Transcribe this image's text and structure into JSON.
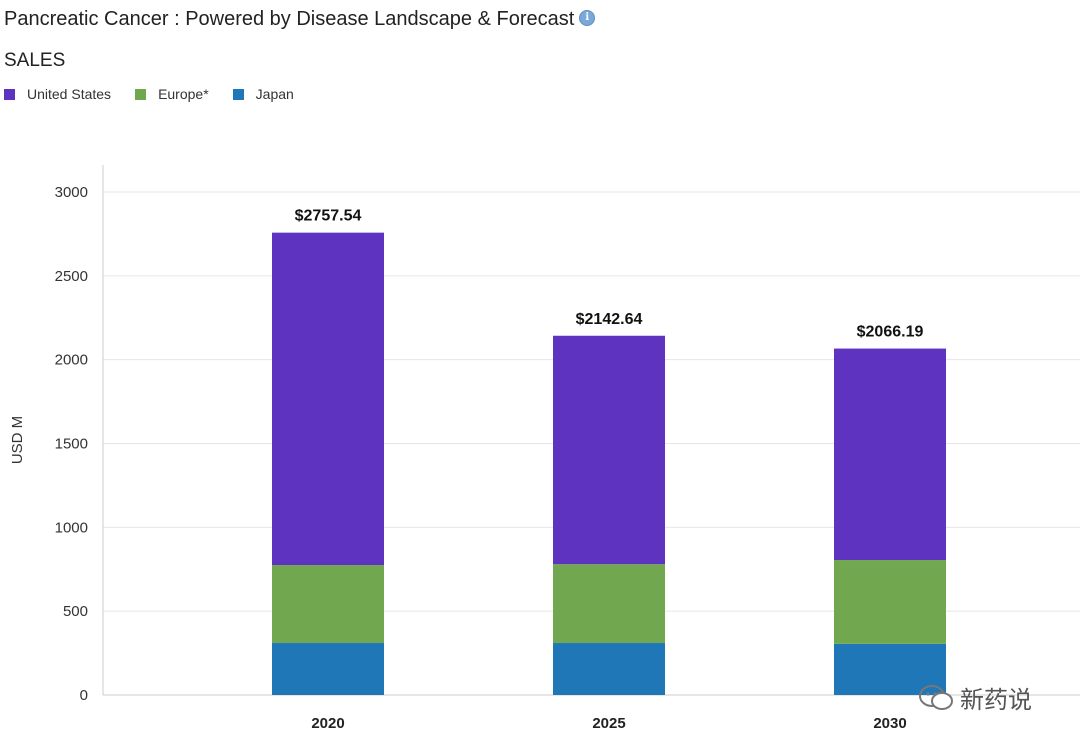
{
  "page_title": "Pancreatic Cancer : Powered by Disease Landscape & Forecast",
  "info_icon": "info-icon",
  "section_label": "SALES",
  "watermark_text": "新药说",
  "chart_data": {
    "type": "bar",
    "stacked": true,
    "title": "Pancreatic Cancer : Powered by Disease Landscape & Forecast",
    "subtitle": "SALES",
    "xlabel": "",
    "ylabel": "USD M",
    "ylim": [
      0,
      3000
    ],
    "yticks": [
      0,
      500,
      1000,
      1500,
      2000,
      2500,
      3000
    ],
    "grid": true,
    "legend_position": "top-left",
    "categories": [
      "2020",
      "2025",
      "2030"
    ],
    "series": [
      {
        "name": "Japan",
        "color": "#1f77b8",
        "values": [
          310,
          310,
          305
        ]
      },
      {
        "name": "Europe*",
        "color": "#71a84f",
        "values": [
          465,
          470,
          500
        ]
      },
      {
        "name": "United States",
        "color": "#5e33bf",
        "values": [
          1982.54,
          1362.64,
          1261.19
        ]
      }
    ],
    "legend_order": [
      "United States",
      "Europe*",
      "Japan"
    ],
    "totals": [
      2757.54,
      2142.64,
      2066.19
    ],
    "total_labels": [
      "$2757.54",
      "$2142.64",
      "$2066.19"
    ]
  }
}
